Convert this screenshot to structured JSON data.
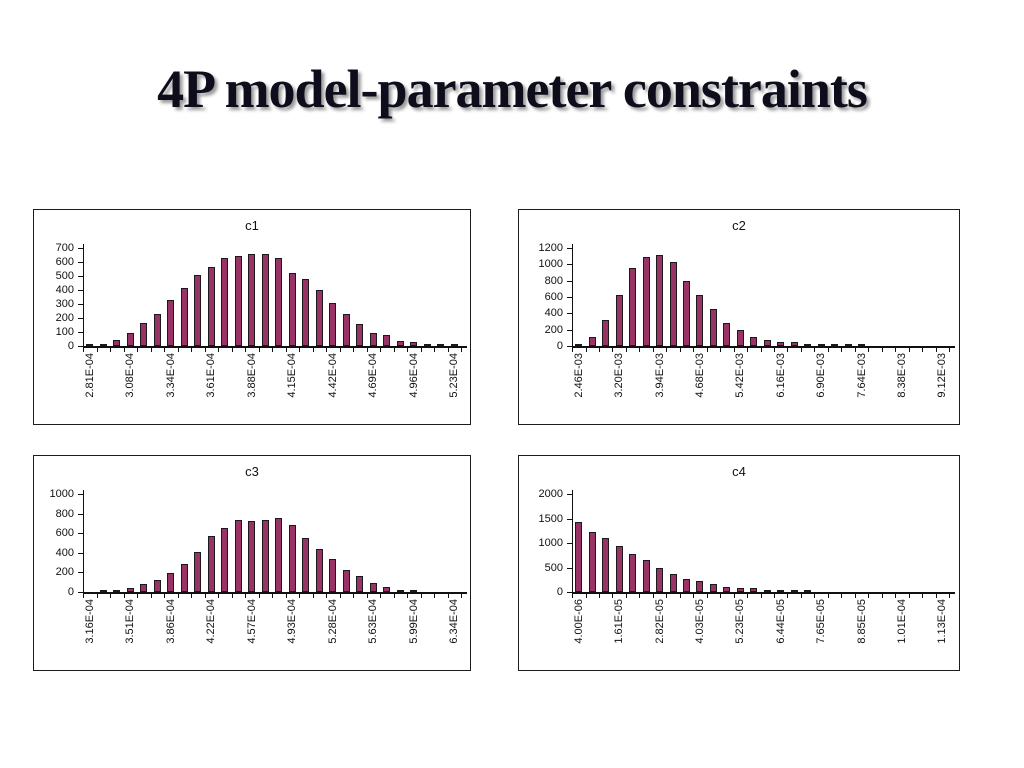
{
  "slide": {
    "title": "4P model-parameter constraints",
    "background_color": "#ffffff",
    "title_color": "#0d0d1c",
    "title_shadow_color": "#9a9a9a"
  },
  "style": {
    "bar_fill": "#993366",
    "bar_border": "#1a1a1a",
    "axis_color": "#111111"
  },
  "chart_data": [
    {
      "type": "bar",
      "title": "c1",
      "xlabel": "",
      "ylabel": "",
      "ylim": [
        0,
        700
      ],
      "yticks": [
        0,
        100,
        200,
        300,
        400,
        500,
        600,
        700
      ],
      "grid": false,
      "legend": "none",
      "label_every": 3,
      "x_tick_labels": [
        "2.81E-04",
        "3.08E-04",
        "3.34E-04",
        "3.61E-04",
        "3.88E-04",
        "4.15E-04",
        "4.42E-04",
        "4.69E-04",
        "4.96E-04",
        "5.23E-04"
      ],
      "values": [
        8,
        15,
        40,
        95,
        165,
        230,
        330,
        415,
        505,
        565,
        625,
        640,
        660,
        660,
        625,
        520,
        480,
        400,
        310,
        225,
        160,
        95,
        80,
        38,
        28,
        8,
        8,
        8
      ]
    },
    {
      "type": "bar",
      "title": "c2",
      "xlabel": "",
      "ylabel": "",
      "ylim": [
        0,
        1200
      ],
      "yticks": [
        0,
        200,
        400,
        600,
        800,
        1000,
        1200
      ],
      "grid": false,
      "legend": "none",
      "label_every": 3,
      "x_tick_labels": [
        "2.46E-03",
        "3.20E-03",
        "3.94E-03",
        "4.68E-03",
        "5.42E-03",
        "6.16E-03",
        "6.90E-03",
        "7.64E-03",
        "8.38E-03",
        "9.12E-03"
      ],
      "values": [
        30,
        110,
        320,
        620,
        950,
        1090,
        1110,
        1030,
        790,
        630,
        450,
        285,
        190,
        110,
        75,
        45,
        48,
        18,
        28,
        15,
        5,
        8,
        0,
        0,
        0,
        0,
        0,
        0
      ]
    },
    {
      "type": "bar",
      "title": "c3",
      "xlabel": "",
      "ylabel": "",
      "ylim": [
        0,
        1000
      ],
      "yticks": [
        0,
        200,
        400,
        600,
        800,
        1000
      ],
      "grid": false,
      "legend": "none",
      "label_every": 3,
      "x_tick_labels": [
        "3.16E-04",
        "3.51E-04",
        "3.86E-04",
        "4.22E-04",
        "4.57E-04",
        "4.93E-04",
        "5.28E-04",
        "5.63E-04",
        "5.99E-04",
        "6.34E-04"
      ],
      "values": [
        0,
        10,
        15,
        40,
        80,
        120,
        190,
        290,
        410,
        575,
        655,
        735,
        720,
        735,
        760,
        685,
        555,
        440,
        335,
        225,
        160,
        95,
        55,
        25,
        15,
        0,
        0,
        0
      ]
    },
    {
      "type": "bar",
      "title": "c4",
      "xlabel": "",
      "ylabel": "",
      "ylim": [
        0,
        2000
      ],
      "yticks": [
        0,
        500,
        1000,
        1500,
        2000
      ],
      "grid": false,
      "legend": "none",
      "label_every": 3,
      "x_tick_labels": [
        "4.00E-06",
        "1.61E-05",
        "2.82E-05",
        "4.03E-05",
        "5.23E-05",
        "6.44E-05",
        "7.65E-05",
        "8.85E-05",
        "1.01E-04",
        "1.13E-04"
      ],
      "values": [
        1430,
        1220,
        1110,
        930,
        770,
        660,
        480,
        370,
        270,
        220,
        160,
        110,
        85,
        80,
        35,
        30,
        30,
        35,
        0,
        0,
        0,
        0,
        0,
        0,
        0,
        0,
        0,
        0
      ]
    }
  ]
}
